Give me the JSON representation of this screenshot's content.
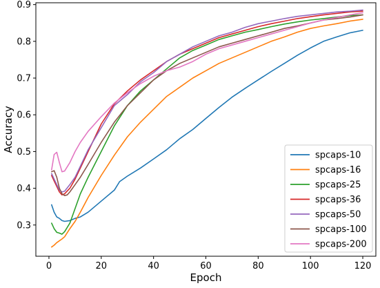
{
  "chart_data": {
    "type": "line",
    "title": "",
    "xlabel": "Epoch",
    "ylabel": "Accuracy",
    "xlim": [
      -5,
      125
    ],
    "ylim": [
      0.215,
      0.905
    ],
    "xticks": [
      0,
      20,
      40,
      60,
      80,
      100,
      120
    ],
    "yticks": [
      0.3,
      0.4,
      0.5,
      0.6,
      0.7,
      0.8,
      0.9
    ],
    "grid": false,
    "legend_position": "lower right",
    "series": [
      {
        "name": "spcaps-10",
        "color": "#1f77b4",
        "x": [
          1,
          2,
          3,
          4,
          5,
          6,
          8,
          10,
          12,
          15,
          20,
          25,
          27,
          30,
          35,
          40,
          45,
          50,
          55,
          60,
          65,
          70,
          75,
          80,
          85,
          90,
          95,
          100,
          105,
          110,
          115,
          120
        ],
        "y": [
          0.355,
          0.335,
          0.322,
          0.318,
          0.312,
          0.31,
          0.312,
          0.318,
          0.322,
          0.335,
          0.365,
          0.395,
          0.418,
          0.433,
          0.455,
          0.48,
          0.505,
          0.535,
          0.56,
          0.59,
          0.62,
          0.648,
          0.672,
          0.695,
          0.718,
          0.74,
          0.762,
          0.782,
          0.8,
          0.812,
          0.823,
          0.83
        ]
      },
      {
        "name": "spcaps-16",
        "color": "#ff7f0e",
        "x": [
          1,
          2,
          3,
          5,
          6,
          8,
          10,
          12,
          15,
          20,
          25,
          30,
          35,
          40,
          45,
          50,
          55,
          60,
          65,
          70,
          75,
          80,
          85,
          90,
          95,
          100,
          105,
          110,
          115,
          120
        ],
        "y": [
          0.24,
          0.245,
          0.252,
          0.262,
          0.268,
          0.29,
          0.31,
          0.335,
          0.375,
          0.435,
          0.49,
          0.54,
          0.58,
          0.615,
          0.65,
          0.675,
          0.7,
          0.72,
          0.74,
          0.755,
          0.77,
          0.785,
          0.8,
          0.812,
          0.825,
          0.835,
          0.842,
          0.848,
          0.855,
          0.86
        ]
      },
      {
        "name": "spcaps-25",
        "color": "#2ca02c",
        "x": [
          1,
          2,
          3,
          4,
          5,
          6,
          8,
          10,
          12,
          15,
          20,
          25,
          30,
          35,
          40,
          45,
          50,
          55,
          60,
          65,
          70,
          75,
          80,
          85,
          90,
          95,
          100,
          105,
          110,
          115,
          120
        ],
        "y": [
          0.305,
          0.29,
          0.28,
          0.278,
          0.275,
          0.282,
          0.305,
          0.345,
          0.385,
          0.43,
          0.5,
          0.57,
          0.625,
          0.665,
          0.695,
          0.725,
          0.755,
          0.775,
          0.79,
          0.805,
          0.815,
          0.825,
          0.832,
          0.84,
          0.847,
          0.853,
          0.858,
          0.862,
          0.866,
          0.87,
          0.872
        ]
      },
      {
        "name": "spcaps-36",
        "color": "#d62728",
        "x": [
          1,
          2,
          3,
          4,
          5,
          6,
          8,
          10,
          12,
          15,
          20,
          25,
          30,
          35,
          40,
          45,
          50,
          55,
          60,
          65,
          70,
          75,
          80,
          85,
          90,
          95,
          100,
          105,
          110,
          115,
          120
        ],
        "y": [
          0.435,
          0.42,
          0.405,
          0.39,
          0.382,
          0.385,
          0.4,
          0.425,
          0.455,
          0.5,
          0.575,
          0.63,
          0.665,
          0.695,
          0.72,
          0.745,
          0.765,
          0.78,
          0.795,
          0.81,
          0.82,
          0.83,
          0.84,
          0.848,
          0.855,
          0.862,
          0.867,
          0.872,
          0.876,
          0.88,
          0.882
        ]
      },
      {
        "name": "spcaps-50",
        "color": "#9467bd",
        "x": [
          1,
          2,
          3,
          4,
          5,
          6,
          8,
          10,
          12,
          15,
          20,
          25,
          30,
          35,
          40,
          45,
          50,
          55,
          60,
          65,
          70,
          75,
          80,
          85,
          90,
          95,
          100,
          105,
          110,
          115,
          120
        ],
        "y": [
          0.44,
          0.425,
          0.41,
          0.395,
          0.39,
          0.392,
          0.41,
          0.43,
          0.46,
          0.505,
          0.565,
          0.625,
          0.655,
          0.69,
          0.715,
          0.745,
          0.765,
          0.785,
          0.8,
          0.815,
          0.825,
          0.838,
          0.848,
          0.855,
          0.862,
          0.868,
          0.872,
          0.876,
          0.88,
          0.882,
          0.885
        ]
      },
      {
        "name": "spcaps-100",
        "color": "#8c564b",
        "x": [
          1,
          2,
          3,
          4,
          5,
          6,
          7,
          8,
          10,
          12,
          15,
          20,
          25,
          30,
          35,
          40,
          45,
          50,
          55,
          60,
          65,
          70,
          75,
          80,
          85,
          90,
          95,
          100,
          105,
          110,
          115,
          120
        ],
        "y": [
          0.445,
          0.448,
          0.43,
          0.4,
          0.385,
          0.38,
          0.382,
          0.39,
          0.41,
          0.43,
          0.465,
          0.525,
          0.58,
          0.625,
          0.66,
          0.695,
          0.72,
          0.74,
          0.755,
          0.77,
          0.785,
          0.795,
          0.805,
          0.815,
          0.825,
          0.835,
          0.842,
          0.85,
          0.858,
          0.862,
          0.866,
          0.872
        ]
      },
      {
        "name": "spcaps-200",
        "color": "#e377c2",
        "x": [
          1,
          2,
          3,
          4,
          5,
          6,
          8,
          10,
          12,
          15,
          20,
          25,
          30,
          35,
          40,
          45,
          50,
          55,
          60,
          65,
          70,
          75,
          80,
          85,
          90,
          95,
          100,
          105,
          110,
          115,
          120
        ],
        "y": [
          0.45,
          0.492,
          0.498,
          0.47,
          0.445,
          0.447,
          0.47,
          0.5,
          0.525,
          0.555,
          0.595,
          0.632,
          0.66,
          0.685,
          0.705,
          0.72,
          0.73,
          0.745,
          0.765,
          0.78,
          0.79,
          0.8,
          0.81,
          0.82,
          0.83,
          0.84,
          0.85,
          0.858,
          0.865,
          0.872,
          0.878
        ]
      }
    ]
  }
}
